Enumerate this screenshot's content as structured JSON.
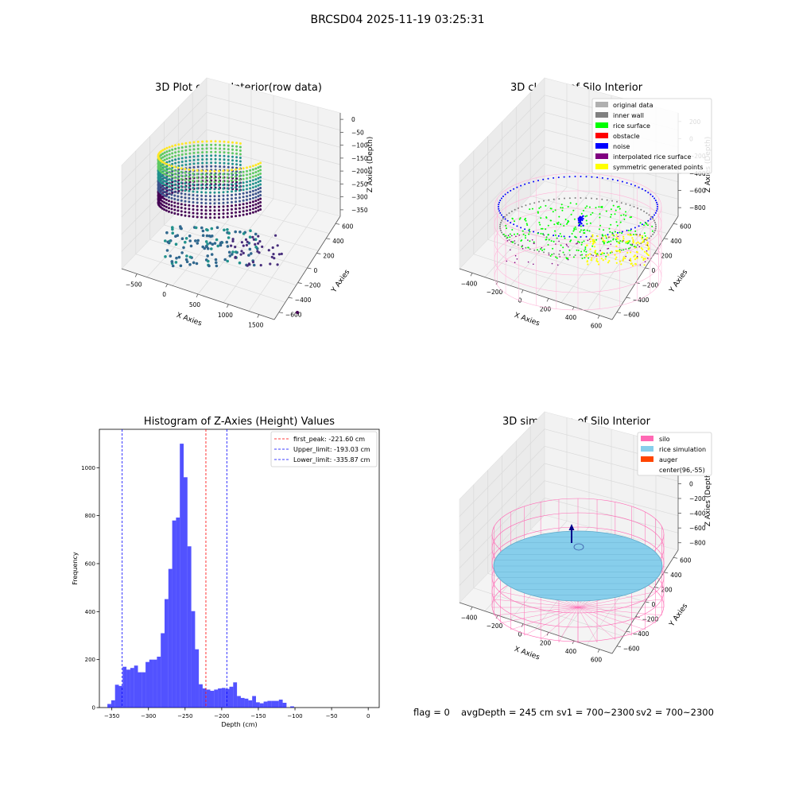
{
  "suptitle": "BRCSD04 2025-11-19 03:25:31",
  "chart_data": [
    {
      "type": "scatter",
      "title": "3D Plot of Silo Interior(row data)",
      "xlabel": "X Axies",
      "ylabel": "Y Axies",
      "zlabel": "Z Axies (Depth)",
      "x_ticks": [
        "−500",
        "0",
        "500",
        "1000",
        "1500"
      ],
      "y_ticks": [
        "600",
        "400",
        "200",
        "0",
        "−200",
        "−400",
        "−600"
      ],
      "z_ticks": [
        "0",
        "−50",
        "−100",
        "−150",
        "−200",
        "−250",
        "−300",
        "−350"
      ],
      "colormap": "viridis",
      "colors": [
        "#440154",
        "#3b528b",
        "#21918c",
        "#5ec962",
        "#fde725"
      ]
    },
    {
      "type": "scatter",
      "title": "3D classify of Silo Interior",
      "xlabel": "X Axies",
      "ylabel": "Y Axies",
      "zlabel": "Z Axies (Depth)",
      "x_ticks": [
        "−400",
        "−200",
        "0",
        "200",
        "400",
        "600"
      ],
      "y_ticks": [
        "600",
        "400",
        "200",
        "0",
        "−200",
        "−400",
        "−600"
      ],
      "z_ticks": [
        "200",
        "0",
        "−200",
        "−400",
        "−600",
        "−800"
      ],
      "legend": [
        {
          "label": "original data",
          "color": "#b0b0b0"
        },
        {
          "label": "inner wall",
          "color": "#808080"
        },
        {
          "label": "rice surface",
          "color": "#00ff00"
        },
        {
          "label": "obstacle",
          "color": "#ff0000"
        },
        {
          "label": "noise",
          "color": "#0000ff"
        },
        {
          "label": "interpolated rice surface",
          "color": "#800080"
        },
        {
          "label": "symmetric generated points",
          "color": "#ffff00"
        }
      ],
      "legend_position": "top-right"
    },
    {
      "type": "bar",
      "title": "Histogram of Z-Axies (Height) Values",
      "xlabel": "Depth (cm)",
      "ylabel": "Frequency",
      "xlim": [
        -367,
        15
      ],
      "ylim": [
        0,
        1160
      ],
      "x_ticks": [
        -350,
        -300,
        -250,
        -200,
        -150,
        -100,
        -50,
        0
      ],
      "y_ticks": [
        0,
        200,
        400,
        600,
        800,
        1000
      ],
      "bin_width": 5.2,
      "bin_start": -356,
      "bar_color": "#0000ff",
      "values": [
        15,
        30,
        95,
        90,
        170,
        158,
        165,
        175,
        147,
        147,
        190,
        200,
        200,
        212,
        310,
        452,
        578,
        780,
        792,
        1100,
        960,
        672,
        402,
        243,
        97,
        80,
        75,
        70,
        75,
        80,
        82,
        78,
        87,
        105,
        48,
        40,
        37,
        30,
        48,
        22,
        18,
        25,
        28,
        28,
        28,
        33,
        20,
        0,
        5
      ],
      "lines": [
        {
          "label": "first_peak: -221.60 cm",
          "value": -221.6,
          "color": "#ff0000"
        },
        {
          "label": "Upper_limit: -193.03 cm",
          "value": -193.03,
          "color": "#0000ff"
        },
        {
          "label": "Lower_limit: -335.87 cm",
          "value": -335.87,
          "color": "#0000ff"
        }
      ],
      "legend_position": "top-right"
    },
    {
      "type": "scatter",
      "title": "3D simulation of Silo Interior",
      "xlabel": "X Axies",
      "ylabel": "Y Axies",
      "zlabel": "Z Axies (Depth)",
      "x_ticks": [
        "−400",
        "−200",
        "0",
        "200",
        "400",
        "600"
      ],
      "y_ticks": [
        "600",
        "400",
        "200",
        "0",
        "−200",
        "−400",
        "−600"
      ],
      "z_ticks": [
        "400",
        "200",
        "0",
        "−200",
        "−400",
        "−600",
        "−800"
      ],
      "legend": [
        {
          "label": "silo",
          "color": "#ff69b4"
        },
        {
          "label": "rice simulation",
          "color": "#87ceeb"
        },
        {
          "label": "auger",
          "color": "#ff4500"
        },
        {
          "label": "center(96,-55)",
          "color": null
        }
      ],
      "legend_position": "top-right"
    }
  ],
  "status": {
    "flag": "flag = 0",
    "avg_depth": "avgDepth = 245 cm",
    "sv1": "sv1 = 700~2300",
    "sv2": "sv2 = 700~2300"
  }
}
